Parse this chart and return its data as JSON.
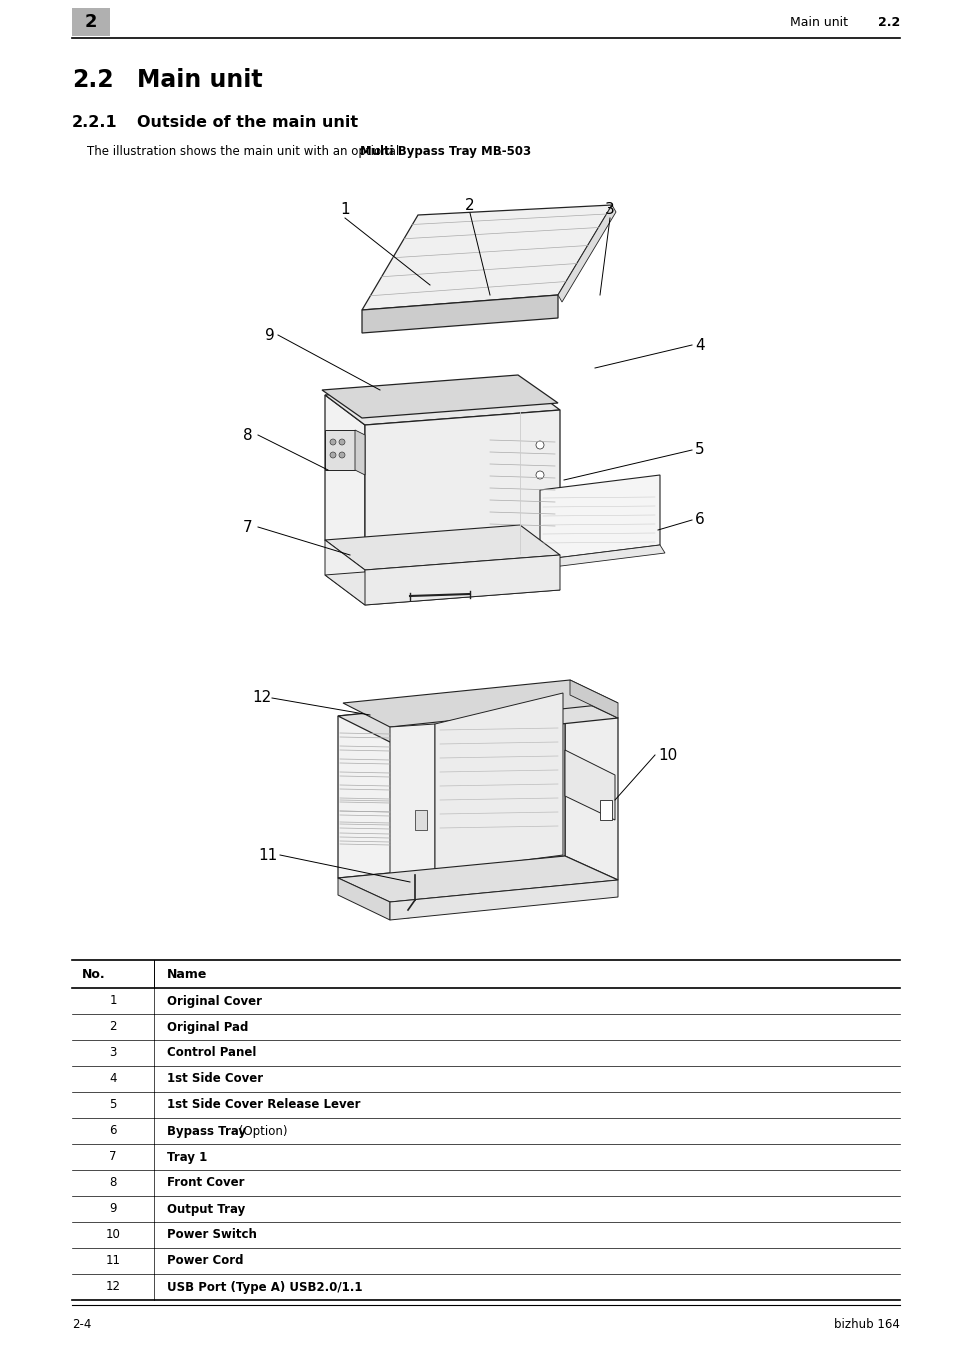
{
  "page_num_box": "2",
  "header_text": "Main unit",
  "header_section": "2.2",
  "footer_left": "2-4",
  "footer_right": "bizhub 164",
  "section_num": "2.2",
  "section_name": "Main unit",
  "subsection_num": "2.2.1",
  "subsection_name": "Outside of the main unit",
  "intro_normal": "The illustration shows the main unit with an optional ",
  "intro_bold": "Multi Bypass Tray MB-503",
  "intro_end": ".",
  "table_headers": [
    "No.",
    "Name"
  ],
  "table_rows": [
    [
      "1",
      "Original Cover",
      true
    ],
    [
      "2",
      "Original Pad",
      true
    ],
    [
      "3",
      "Control Panel",
      true
    ],
    [
      "4",
      "1st Side Cover",
      true
    ],
    [
      "5",
      "1st Side Cover Release Lever",
      true
    ],
    [
      "6",
      "Bypass Tray (Option)",
      false
    ],
    [
      "7",
      "Tray 1",
      true
    ],
    [
      "8",
      "Front Cover",
      true
    ],
    [
      "9",
      "Output Tray",
      true
    ],
    [
      "10",
      "Power Switch",
      true
    ],
    [
      "11",
      "Power Cord",
      true
    ],
    [
      "12",
      "USB Port (Type A) USB2.0/1.1",
      true
    ]
  ],
  "row6_bold": "Bypass Tray",
  "row6_normal": " (Option)",
  "bg": "#ffffff",
  "black": "#000000",
  "gray_box": "#b0b0b0",
  "lc": "#888888"
}
